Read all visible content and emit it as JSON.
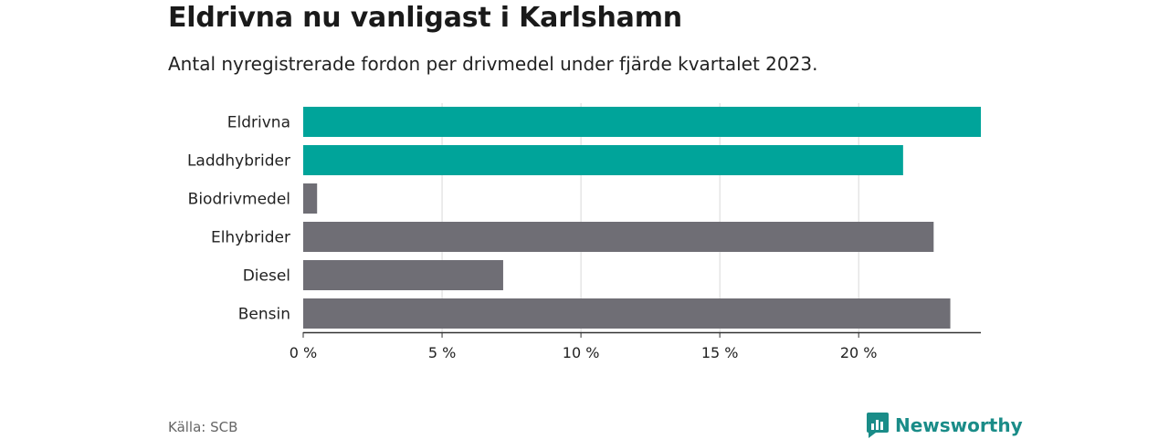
{
  "header": {
    "title": "Eldrivna nu vanligast i Karlshamn",
    "subtitle": "Antal nyregistrerade fordon per drivmedel under fjärde kvartalet 2023."
  },
  "footer": {
    "source": "Källa: SCB",
    "brand": "Newsworthy"
  },
  "colors": {
    "highlight": "#00a49a",
    "default": "#6f6e75",
    "grid": "#d9d9d9",
    "axis": "#333333",
    "brand": "#1a8c88"
  },
  "chart_data": {
    "type": "bar",
    "orientation": "horizontal",
    "title": "Eldrivna nu vanligast i Karlshamn",
    "subtitle": "Antal nyregistrerade fordon per drivmedel under fjärde kvartalet 2023.",
    "categories": [
      "Eldrivna",
      "Laddhybrider",
      "Biodrivmedel",
      "Elhybrider",
      "Diesel",
      "Bensin"
    ],
    "values": [
      24.4,
      21.6,
      0.5,
      22.7,
      7.2,
      23.3
    ],
    "highlighted": [
      true,
      true,
      false,
      false,
      false,
      false
    ],
    "xlim": [
      0,
      24.4
    ],
    "xticks": [
      0,
      5,
      10,
      15,
      20
    ],
    "xtick_labels": [
      "0 %",
      "5 %",
      "10 %",
      "15 %",
      "20 %"
    ],
    "grid": true,
    "xlabel": "",
    "ylabel": ""
  }
}
